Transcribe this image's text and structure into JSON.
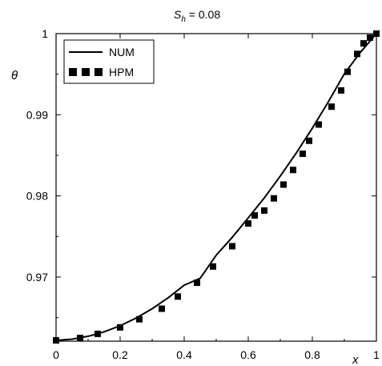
{
  "chart_data": {
    "type": "line",
    "title": {
      "symbol": "S",
      "subscript": "h",
      "rest": " = 0.08"
    },
    "xlabel": "x",
    "ylabel": "θ",
    "xlim": [
      0,
      1
    ],
    "ylim": [
      0.9621,
      1.0
    ],
    "grid": false,
    "legend_position": "top-left",
    "x_ticks": [
      {
        "value": 0,
        "label": "0"
      },
      {
        "value": 0.2,
        "label": "0.2"
      },
      {
        "value": 0.4,
        "label": "0.4"
      },
      {
        "value": 0.6,
        "label": "0.6"
      },
      {
        "value": 0.8,
        "label": "0.8"
      },
      {
        "value": 1,
        "label": "1"
      }
    ],
    "y_ticks": [
      {
        "value": 0.97,
        "label": "0.97"
      },
      {
        "value": 0.98,
        "label": "0.98"
      },
      {
        "value": 0.99,
        "label": "0.99"
      },
      {
        "value": 1.0,
        "label": "1"
      }
    ],
    "series": [
      {
        "name": "NUM",
        "style": "line",
        "color": "#000000",
        "x": [
          0,
          0.05,
          0.1,
          0.15,
          0.2,
          0.25,
          0.3,
          0.35,
          0.4,
          0.45,
          0.5,
          0.55,
          0.6,
          0.65,
          0.7,
          0.75,
          0.8,
          0.85,
          0.9,
          0.95,
          1.0
        ],
        "y": [
          0.9622,
          0.96235,
          0.9627,
          0.96325,
          0.964,
          0.96495,
          0.9661,
          0.96745,
          0.969,
          0.96985,
          0.9727,
          0.9749,
          0.9773,
          0.97975,
          0.98245,
          0.9853,
          0.98835,
          0.9916,
          0.99505,
          0.9977,
          1.0
        ]
      },
      {
        "name": "HPM",
        "style": "square-markers",
        "color": "#000000",
        "x": [
          0,
          0.075,
          0.13,
          0.2,
          0.26,
          0.33,
          0.38,
          0.44,
          0.49,
          0.55,
          0.6,
          0.62,
          0.65,
          0.68,
          0.71,
          0.74,
          0.77,
          0.79,
          0.82,
          0.86,
          0.89,
          0.91,
          0.94,
          0.96,
          0.98,
          1.0
        ],
        "y": [
          0.9622,
          0.9625,
          0.963,
          0.9638,
          0.9648,
          0.9661,
          0.9676,
          0.9693,
          0.9713,
          0.9738,
          0.9766,
          0.9776,
          0.9782,
          0.9797,
          0.9814,
          0.9832,
          0.9852,
          0.9868,
          0.9888,
          0.991,
          0.993,
          0.9953,
          0.9975,
          0.9988,
          0.9995,
          1.0
        ]
      }
    ]
  }
}
